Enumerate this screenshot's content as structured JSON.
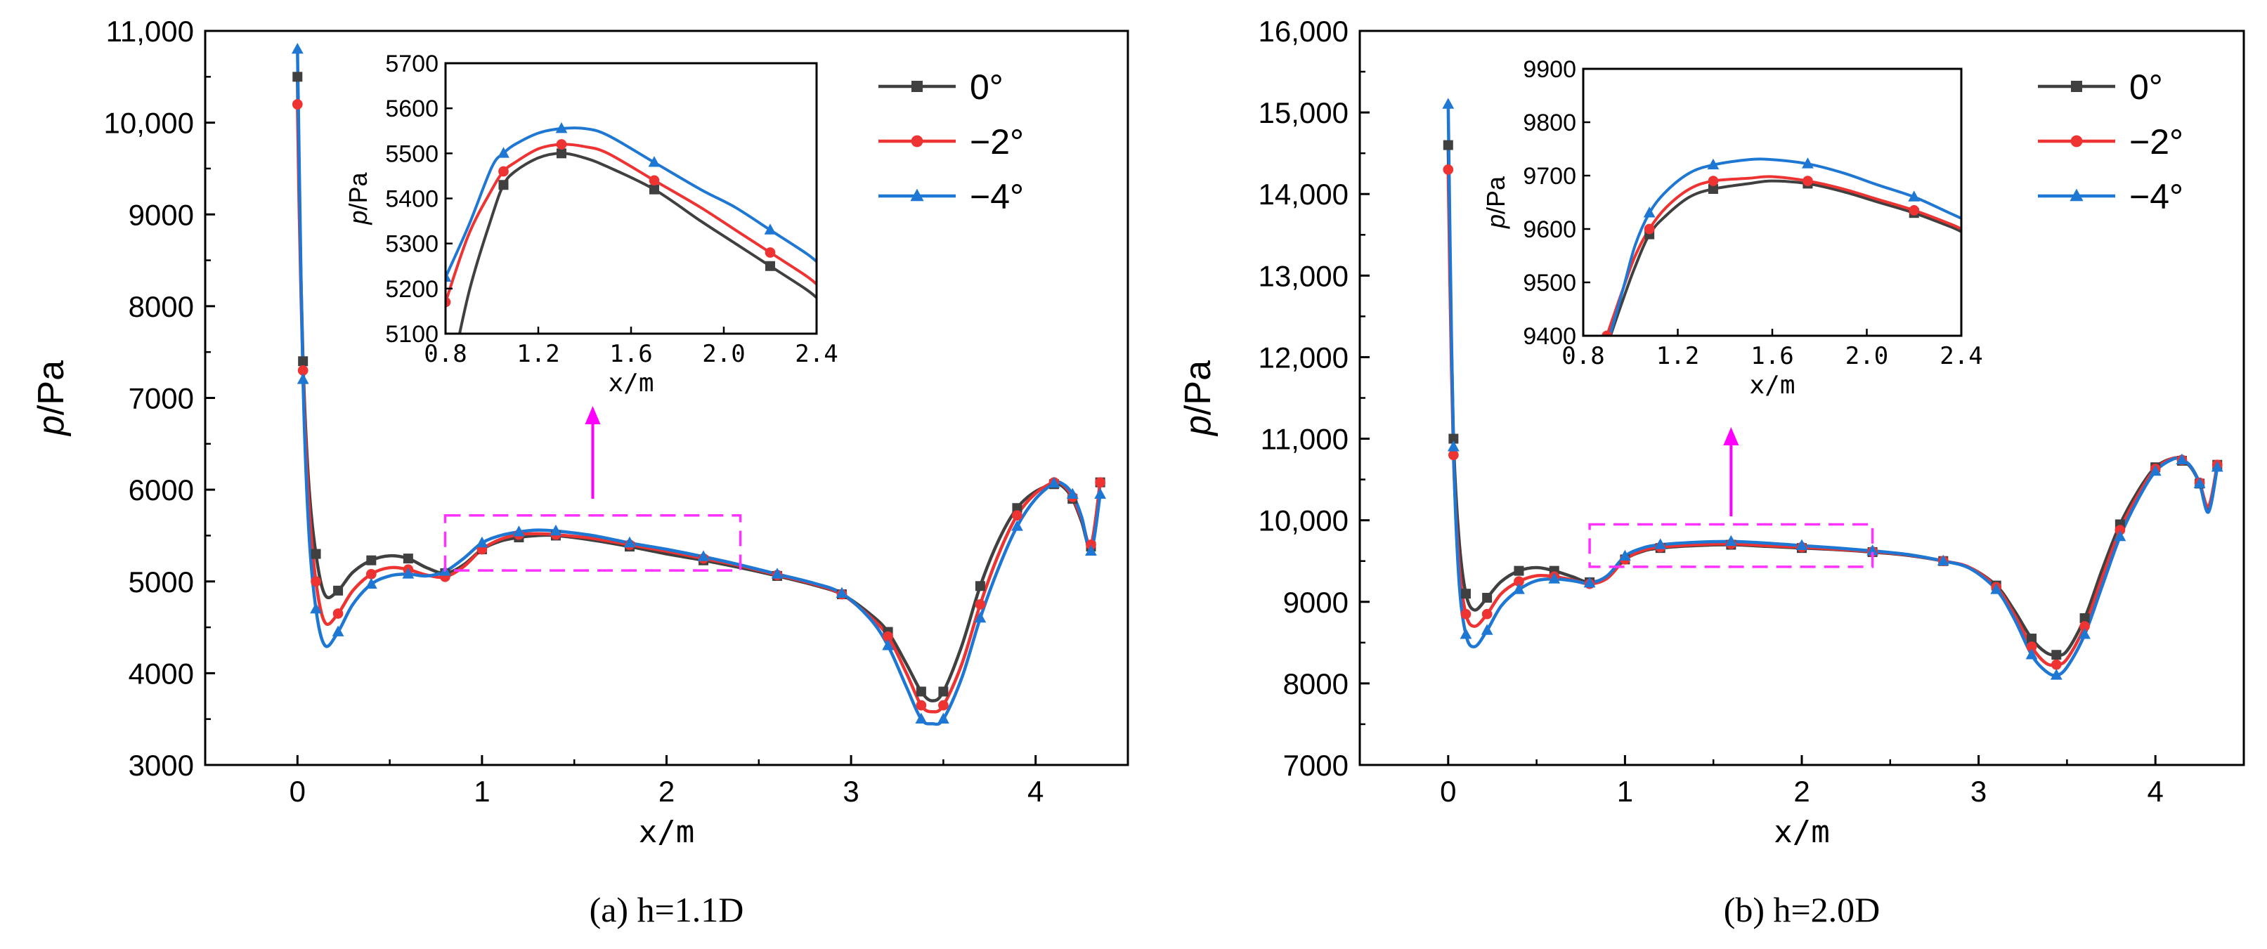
{
  "chart_data": [
    {
      "type": "line",
      "caption": "(a) h=1.1D",
      "xlabel": "x/m",
      "ylabel_italic": "p",
      "ylabel_unit": "/Pa",
      "xlim": [
        -0.5,
        4.5
      ],
      "ylim": [
        3000,
        11000
      ],
      "xticks": [
        0,
        1,
        2,
        3,
        4
      ],
      "xtick_labels": [
        "0",
        "1",
        "2",
        "3",
        "4"
      ],
      "yticks": [
        3000,
        4000,
        5000,
        6000,
        7000,
        8000,
        9000,
        10000,
        11000
      ],
      "ytick_labels": [
        "3000",
        "4000",
        "5000",
        "6000",
        "7000",
        "8000",
        "9000",
        "10,000",
        "11,000"
      ],
      "legend": [
        "0°",
        "−2°",
        "−4°"
      ],
      "colors": [
        "#404040",
        "#ee3333",
        "#1f77d4"
      ],
      "series": [
        {
          "name": "0°",
          "marker": "square",
          "x": [
            0.0,
            0.01,
            0.03,
            0.06,
            0.1,
            0.15,
            0.22,
            0.3,
            0.4,
            0.5,
            0.6,
            0.7,
            0.8,
            0.9,
            1.0,
            1.1,
            1.2,
            1.3,
            1.4,
            1.6,
            1.8,
            2.0,
            2.2,
            2.4,
            2.6,
            2.8,
            2.95,
            3.1,
            3.2,
            3.3,
            3.38,
            3.44,
            3.5,
            3.6,
            3.7,
            3.8,
            3.9,
            4.0,
            4.1,
            4.15,
            4.2,
            4.25,
            4.3,
            4.35
          ],
          "y": [
            10500,
            9200,
            7400,
            6100,
            5300,
            4850,
            4900,
            5100,
            5230,
            5280,
            5250,
            5150,
            5090,
            5180,
            5350,
            5440,
            5480,
            5500,
            5500,
            5450,
            5380,
            5300,
            5230,
            5150,
            5060,
            4960,
            4860,
            4650,
            4450,
            4100,
            3800,
            3700,
            3800,
            4300,
            4950,
            5450,
            5800,
            5980,
            6060,
            6030,
            5900,
            5650,
            5380,
            6080
          ]
        },
        {
          "name": "−2°",
          "marker": "circle",
          "x": [
            0.0,
            0.01,
            0.03,
            0.06,
            0.1,
            0.15,
            0.22,
            0.3,
            0.4,
            0.5,
            0.6,
            0.7,
            0.8,
            0.9,
            1.0,
            1.1,
            1.2,
            1.3,
            1.4,
            1.6,
            1.8,
            2.0,
            2.2,
            2.4,
            2.6,
            2.8,
            2.95,
            3.1,
            3.2,
            3.3,
            3.38,
            3.44,
            3.5,
            3.6,
            3.7,
            3.8,
            3.9,
            4.0,
            4.1,
            4.15,
            4.2,
            4.25,
            4.3,
            4.35
          ],
          "y": [
            10200,
            9000,
            7300,
            5900,
            5000,
            4550,
            4650,
            4900,
            5080,
            5150,
            5130,
            5070,
            5050,
            5160,
            5350,
            5460,
            5510,
            5520,
            5510,
            5470,
            5400,
            5330,
            5250,
            5170,
            5070,
            4970,
            4860,
            4620,
            4400,
            4000,
            3650,
            3580,
            3650,
            4100,
            4750,
            5300,
            5720,
            5960,
            6080,
            6050,
            5920,
            5680,
            5400,
            6080
          ]
        },
        {
          "name": "−4°",
          "marker": "triangle",
          "x": [
            0.0,
            0.01,
            0.03,
            0.06,
            0.1,
            0.15,
            0.22,
            0.3,
            0.4,
            0.5,
            0.6,
            0.7,
            0.8,
            0.9,
            1.0,
            1.1,
            1.2,
            1.3,
            1.4,
            1.6,
            1.8,
            2.0,
            2.2,
            2.4,
            2.6,
            2.8,
            2.95,
            3.1,
            3.2,
            3.3,
            3.38,
            3.44,
            3.5,
            3.6,
            3.7,
            3.8,
            3.9,
            4.0,
            4.1,
            4.15,
            4.2,
            4.25,
            4.3,
            4.35
          ],
          "y": [
            10800,
            9500,
            7200,
            5600,
            4700,
            4300,
            4450,
            4750,
            4970,
            5060,
            5080,
            5060,
            5110,
            5250,
            5420,
            5500,
            5540,
            5560,
            5550,
            5500,
            5420,
            5350,
            5270,
            5180,
            5080,
            4980,
            4870,
            4600,
            4300,
            3850,
            3500,
            3450,
            3500,
            3950,
            4600,
            5150,
            5600,
            5900,
            6070,
            6060,
            5950,
            5700,
            5330,
            5950
          ]
        }
      ],
      "inset": {
        "xlabel": "x/m",
        "ylabel_italic": "p",
        "ylabel_unit": "/Pa",
        "xlim": [
          0.8,
          2.4
        ],
        "ylim": [
          5100,
          5700
        ],
        "xticks": [
          0.8,
          1.2,
          1.6,
          2.0,
          2.4
        ],
        "xtick_labels": [
          "0.8",
          "1.2",
          "1.6",
          "2.0",
          "2.4"
        ],
        "yticks": [
          5100,
          5200,
          5300,
          5400,
          5500,
          5600,
          5700
        ],
        "ytick_labels": [
          "5100",
          "5200",
          "5300",
          "5400",
          "5500",
          "5600",
          "5700"
        ],
        "series": [
          {
            "name": "0°",
            "x": [
              0.8,
              0.9,
              1.0,
              1.05,
              1.1,
              1.2,
              1.3,
              1.4,
              1.5,
              1.7,
              1.9,
              2.05,
              2.2,
              2.35,
              2.4
            ],
            "y": [
              4950,
              5190,
              5360,
              5430,
              5460,
              5490,
              5500,
              5490,
              5470,
              5420,
              5350,
              5300,
              5250,
              5200,
              5180
            ]
          },
          {
            "name": "−2°",
            "x": [
              0.8,
              0.9,
              1.0,
              1.05,
              1.1,
              1.2,
              1.3,
              1.4,
              1.5,
              1.7,
              1.9,
              2.05,
              2.2,
              2.35,
              2.4
            ],
            "y": [
              5170,
              5320,
              5420,
              5460,
              5480,
              5510,
              5520,
              5515,
              5500,
              5440,
              5380,
              5330,
              5280,
              5230,
              5210
            ]
          },
          {
            "name": "−4°",
            "x": [
              0.8,
              0.9,
              1.0,
              1.05,
              1.1,
              1.2,
              1.3,
              1.4,
              1.5,
              1.7,
              1.9,
              2.05,
              2.2,
              2.35,
              2.4
            ],
            "y": [
              5225,
              5340,
              5470,
              5500,
              5520,
              5545,
              5555,
              5555,
              5540,
              5480,
              5420,
              5380,
              5330,
              5280,
              5260
            ]
          }
        ]
      },
      "highlight_region": {
        "x": [
          0.8,
          2.4
        ],
        "y": [
          5120,
          5720
        ]
      }
    },
    {
      "type": "line",
      "caption": "(b) h=2.0D",
      "xlabel": "x/m",
      "ylabel_italic": "p",
      "ylabel_unit": "/Pa",
      "xlim": [
        -0.5,
        4.5
      ],
      "ylim": [
        7000,
        16000
      ],
      "xticks": [
        0,
        1,
        2,
        3,
        4
      ],
      "xtick_labels": [
        "0",
        "1",
        "2",
        "3",
        "4"
      ],
      "yticks": [
        7000,
        8000,
        9000,
        10000,
        11000,
        12000,
        13000,
        14000,
        15000,
        16000
      ],
      "ytick_labels": [
        "7000",
        "8000",
        "9000",
        "10,000",
        "11,000",
        "12,000",
        "13,000",
        "14,000",
        "15,000",
        "16,000"
      ],
      "legend": [
        "0°",
        "−2°",
        "−4°"
      ],
      "colors": [
        "#404040",
        "#ee3333",
        "#1f77d4"
      ],
      "series": [
        {
          "name": "0°",
          "marker": "square",
          "x": [
            0.0,
            0.01,
            0.03,
            0.06,
            0.1,
            0.15,
            0.22,
            0.3,
            0.4,
            0.5,
            0.6,
            0.7,
            0.8,
            0.9,
            1.0,
            1.1,
            1.2,
            1.4,
            1.6,
            1.8,
            2.0,
            2.2,
            2.4,
            2.6,
            2.8,
            2.95,
            3.1,
            3.2,
            3.3,
            3.38,
            3.44,
            3.5,
            3.6,
            3.7,
            3.8,
            3.9,
            4.0,
            4.1,
            4.15,
            4.2,
            4.25,
            4.3,
            4.35
          ],
          "y": [
            14600,
            13200,
            11000,
            9800,
            9100,
            8900,
            9050,
            9250,
            9380,
            9420,
            9380,
            9310,
            9240,
            9310,
            9520,
            9620,
            9660,
            9690,
            9700,
            9680,
            9660,
            9640,
            9610,
            9570,
            9500,
            9420,
            9200,
            8900,
            8550,
            8380,
            8350,
            8400,
            8800,
            9400,
            9950,
            10350,
            10650,
            10760,
            10730,
            10650,
            10450,
            10150,
            10680
          ]
        },
        {
          "name": "−2°",
          "marker": "circle",
          "x": [
            0.0,
            0.01,
            0.03,
            0.06,
            0.1,
            0.15,
            0.22,
            0.3,
            0.4,
            0.5,
            0.6,
            0.7,
            0.8,
            0.9,
            1.0,
            1.1,
            1.2,
            1.4,
            1.6,
            1.8,
            2.0,
            2.2,
            2.4,
            2.6,
            2.8,
            2.95,
            3.1,
            3.2,
            3.3,
            3.38,
            3.44,
            3.5,
            3.6,
            3.7,
            3.8,
            3.9,
            4.0,
            4.1,
            4.15,
            4.2,
            4.25,
            4.3,
            4.35
          ],
          "y": [
            14300,
            12900,
            10800,
            9500,
            8850,
            8700,
            8850,
            9100,
            9250,
            9320,
            9310,
            9270,
            9220,
            9290,
            9520,
            9630,
            9670,
            9700,
            9710,
            9690,
            9670,
            9645,
            9615,
            9575,
            9500,
            9420,
            9180,
            8850,
            8450,
            8250,
            8230,
            8300,
            8700,
            9300,
            9880,
            10300,
            10630,
            10760,
            10740,
            10660,
            10460,
            10170,
            10680
          ]
        },
        {
          "name": "−4°",
          "marker": "triangle",
          "x": [
            0.0,
            0.01,
            0.03,
            0.06,
            0.1,
            0.15,
            0.22,
            0.3,
            0.4,
            0.5,
            0.6,
            0.7,
            0.8,
            0.9,
            1.0,
            1.1,
            1.2,
            1.4,
            1.6,
            1.8,
            2.0,
            2.2,
            2.4,
            2.6,
            2.8,
            2.95,
            3.1,
            3.2,
            3.3,
            3.38,
            3.44,
            3.5,
            3.6,
            3.7,
            3.8,
            3.9,
            4.0,
            4.1,
            4.15,
            4.2,
            4.25,
            4.3,
            4.35
          ],
          "y": [
            15100,
            13500,
            10900,
            9300,
            8600,
            8450,
            8650,
            8950,
            9150,
            9260,
            9280,
            9260,
            9230,
            9320,
            9560,
            9660,
            9700,
            9730,
            9740,
            9720,
            9690,
            9660,
            9625,
            9580,
            9500,
            9410,
            9150,
            8800,
            8350,
            8150,
            8100,
            8200,
            8600,
            9200,
            9800,
            10250,
            10600,
            10750,
            10740,
            10660,
            10450,
            10100,
            10650
          ]
        }
      ],
      "inset": {
        "xlabel": "x/m",
        "ylabel_italic": "p",
        "ylabel_unit": "/Pa",
        "xlim": [
          0.8,
          2.4
        ],
        "ylim": [
          9400,
          9900
        ],
        "xticks": [
          0.8,
          1.2,
          1.6,
          2.0,
          2.4
        ],
        "xtick_labels": [
          "0.8",
          "1.2",
          "1.6",
          "2.0",
          "2.4"
        ],
        "yticks": [
          9400,
          9500,
          9600,
          9700,
          9800,
          9900
        ],
        "ytick_labels": [
          "9400",
          "9500",
          "9600",
          "9700",
          "9800",
          "9900"
        ],
        "series": [
          {
            "name": "0°",
            "x": [
              0.9,
              0.97,
              1.02,
              1.08,
              1.15,
              1.25,
              1.35,
              1.5,
              1.6,
              1.75,
              1.9,
              2.05,
              2.2,
              2.35,
              2.4
            ],
            "y": [
              9380,
              9470,
              9530,
              9590,
              9625,
              9660,
              9675,
              9685,
              9690,
              9685,
              9670,
              9650,
              9630,
              9605,
              9595
            ]
          },
          {
            "name": "−2°",
            "x": [
              0.9,
              0.97,
              1.02,
              1.08,
              1.15,
              1.25,
              1.35,
              1.5,
              1.6,
              1.75,
              1.9,
              2.05,
              2.2,
              2.35,
              2.4
            ],
            "y": [
              9400,
              9490,
              9550,
              9600,
              9640,
              9675,
              9690,
              9695,
              9698,
              9690,
              9675,
              9655,
              9635,
              9610,
              9600
            ]
          },
          {
            "name": "−4°",
            "x": [
              0.9,
              0.97,
              1.02,
              1.08,
              1.15,
              1.25,
              1.35,
              1.5,
              1.6,
              1.75,
              1.9,
              2.05,
              2.2,
              2.35,
              2.4
            ],
            "y": [
              9380,
              9490,
              9570,
              9630,
              9670,
              9705,
              9720,
              9730,
              9730,
              9722,
              9705,
              9682,
              9660,
              9630,
              9620
            ]
          }
        ]
      },
      "highlight_region": {
        "x": [
          0.8,
          2.4
        ],
        "y": [
          9430,
          9950
        ]
      }
    }
  ]
}
